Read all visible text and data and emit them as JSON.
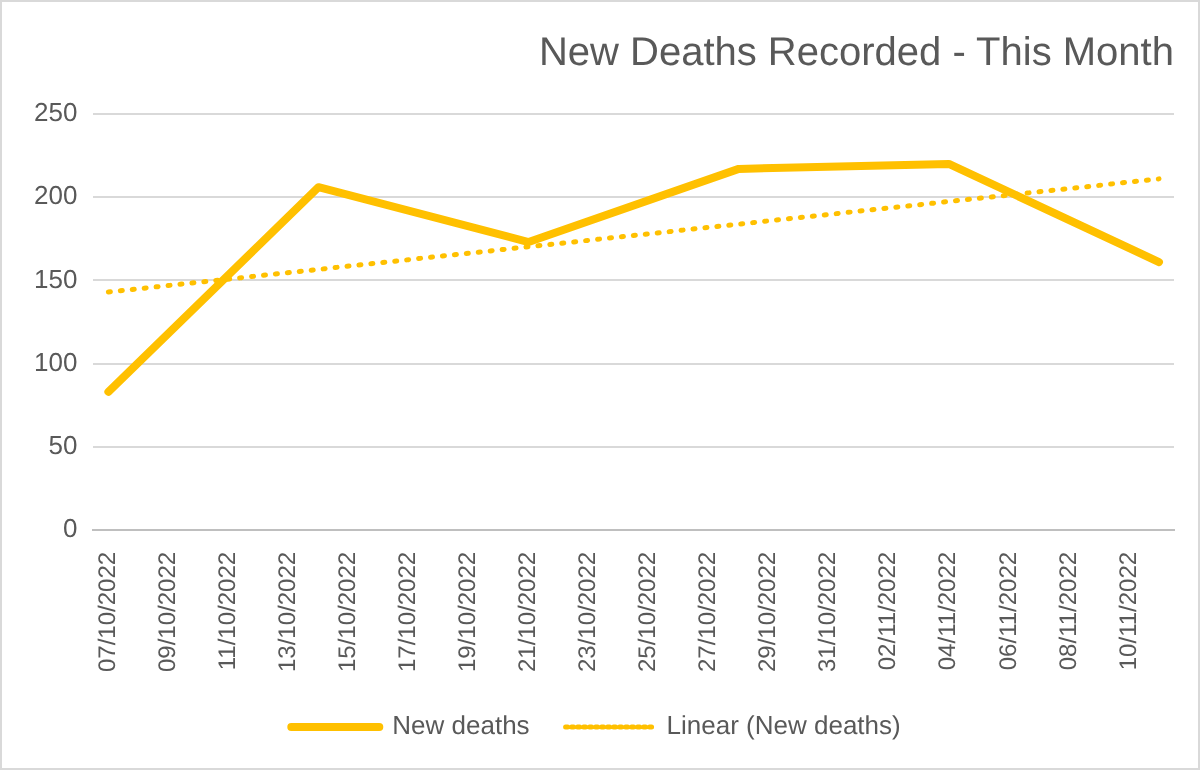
{
  "chart_data": {
    "type": "line",
    "title": "New Deaths Recorded - This Month",
    "x": [
      "2022-10-07",
      "2022-10-14",
      "2022-10-21",
      "2022-10-28",
      "2022-11-04",
      "2022-11-11"
    ],
    "series": [
      {
        "name": "New deaths",
        "color": "#ffc000",
        "values": [
          83,
          206,
          173,
          217,
          220,
          161
        ],
        "line_style": "solid"
      },
      {
        "name": "Linear (New deaths)",
        "color": "#ffc000",
        "type": "line",
        "x": [
          "2022-10-07",
          "2022-11-11"
        ],
        "values": [
          143,
          211
        ],
        "line_style": "dotted"
      }
    ],
    "xlim": [
      "2022-10-06T12:00",
      "2022-11-11T12:00"
    ],
    "xticks": [
      {
        "value": "2022-10-07",
        "label": "07/10/2022"
      },
      {
        "value": "2022-10-09",
        "label": "09/10/2022"
      },
      {
        "value": "2022-10-11",
        "label": "11/10/2022"
      },
      {
        "value": "2022-10-13",
        "label": "13/10/2022"
      },
      {
        "value": "2022-10-15",
        "label": "15/10/2022"
      },
      {
        "value": "2022-10-17",
        "label": "17/10/2022"
      },
      {
        "value": "2022-10-19",
        "label": "19/10/2022"
      },
      {
        "value": "2022-10-21",
        "label": "21/10/2022"
      },
      {
        "value": "2022-10-23",
        "label": "23/10/2022"
      },
      {
        "value": "2022-10-25",
        "label": "25/10/2022"
      },
      {
        "value": "2022-10-27",
        "label": "27/10/2022"
      },
      {
        "value": "2022-10-29",
        "label": "29/10/2022"
      },
      {
        "value": "2022-10-31",
        "label": "31/10/2022"
      },
      {
        "value": "2022-11-02",
        "label": "02/11/2022"
      },
      {
        "value": "2022-11-04",
        "label": "04/11/2022"
      },
      {
        "value": "2022-11-06",
        "label": "06/11/2022"
      },
      {
        "value": "2022-11-08",
        "label": "08/11/2022"
      },
      {
        "value": "2022-11-10",
        "label": "10/11/2022"
      }
    ],
    "ylim": [
      0,
      250
    ],
    "yticks": [
      0,
      50,
      100,
      150,
      200,
      250
    ],
    "grid": "y",
    "legend": "bottom",
    "marker": "none"
  }
}
